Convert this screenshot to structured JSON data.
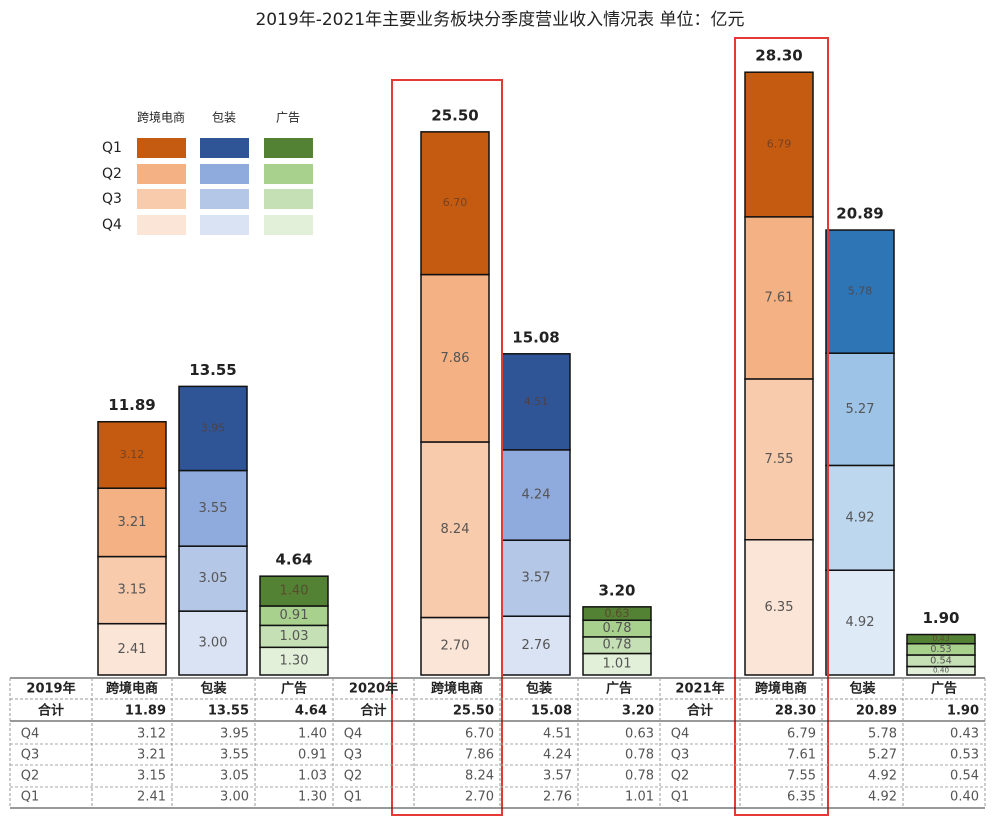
{
  "chart_data": {
    "type": "bar",
    "stacked": true,
    "title": "2019年-2021年主要业务板块分季度营业收入情况表  单位：亿元",
    "categories": [
      "跨境电商",
      "包装",
      "广告"
    ],
    "legend": {
      "labels": [
        "Q1",
        "Q2",
        "Q3",
        "Q4"
      ]
    },
    "total_label": "合计",
    "groups": [
      {
        "name": "2019年",
        "totals": [
          11.89,
          13.55,
          4.64
        ],
        "total_labels": [
          "11.89",
          "13.55",
          "4.64"
        ],
        "series": [
          {
            "name": "Q4",
            "values": [
              3.12,
              3.95,
              1.4
            ],
            "value_labels": [
              "3.12",
              "3.95",
              "1.40"
            ],
            "colors": [
              "#c55a11",
              "#2f5597",
              "#548235"
            ]
          },
          {
            "name": "Q3",
            "values": [
              3.21,
              3.55,
              0.91
            ],
            "value_labels": [
              "3.21",
              "3.55",
              "0.91"
            ],
            "colors": [
              "#f4b183",
              "#8faadc",
              "#a9d18e"
            ]
          },
          {
            "name": "Q2",
            "values": [
              3.15,
              3.05,
              1.03
            ],
            "value_labels": [
              "3.15",
              "3.05",
              "1.03"
            ],
            "colors": [
              "#f8cbad",
              "#b4c7e7",
              "#c5e0b4"
            ]
          },
          {
            "name": "Q1",
            "values": [
              2.41,
              3.0,
              1.3
            ],
            "value_labels": [
              "2.41",
              "3.00",
              "1.30"
            ],
            "colors": [
              "#fbe5d6",
              "#dae3f3",
              "#e2f0d9"
            ]
          }
        ]
      },
      {
        "name": "2020年",
        "totals": [
          25.5,
          15.08,
          3.2
        ],
        "total_labels": [
          "25.50",
          "15.08",
          "3.20"
        ],
        "series": [
          {
            "name": "Q4",
            "values": [
              6.7,
              4.51,
              0.63
            ],
            "value_labels": [
              "6.70",
              "4.51",
              "0.63"
            ],
            "colors": [
              "#c55a11",
              "#2f5597",
              "#548235"
            ]
          },
          {
            "name": "Q3",
            "values": [
              7.86,
              4.24,
              0.78
            ],
            "value_labels": [
              "7.86",
              "4.24",
              "0.78"
            ],
            "colors": [
              "#f4b183",
              "#8faadc",
              "#a9d18e"
            ]
          },
          {
            "name": "Q2",
            "values": [
              8.24,
              3.57,
              0.78
            ],
            "value_labels": [
              "8.24",
              "3.57",
              "0.78"
            ],
            "colors": [
              "#f8cbad",
              "#b4c7e7",
              "#c5e0b4"
            ]
          },
          {
            "name": "Q1",
            "values": [
              2.7,
              2.76,
              1.01
            ],
            "value_labels": [
              "2.70",
              "2.76",
              "1.01"
            ],
            "colors": [
              "#fbe5d6",
              "#dae3f3",
              "#e2f0d9"
            ]
          }
        ]
      },
      {
        "name": "2021年",
        "totals": [
          28.3,
          20.89,
          1.9
        ],
        "total_labels": [
          "28.30",
          "20.89",
          "1.90"
        ],
        "series": [
          {
            "name": "Q4",
            "values": [
              6.79,
              5.78,
              0.43
            ],
            "value_labels": [
              "6.79",
              "5.78",
              "0.43"
            ],
            "colors": [
              "#c55a11",
              "#2e75b6",
              "#548235"
            ]
          },
          {
            "name": "Q3",
            "values": [
              7.61,
              5.27,
              0.53
            ],
            "value_labels": [
              "7.61",
              "5.27",
              "0.53"
            ],
            "colors": [
              "#f4b183",
              "#9dc3e6",
              "#a9d18e"
            ]
          },
          {
            "name": "Q2",
            "values": [
              7.55,
              4.92,
              0.54
            ],
            "value_labels": [
              "7.55",
              "4.92",
              "0.54"
            ],
            "colors": [
              "#f8cbad",
              "#bdd7ee",
              "#c5e0b4"
            ]
          },
          {
            "name": "Q1",
            "values": [
              6.35,
              4.92,
              0.4
            ],
            "value_labels": [
              "6.35",
              "4.92",
              "0.40"
            ],
            "colors": [
              "#fbe5d6",
              "#deebf7",
              "#e2f0d9"
            ]
          }
        ]
      }
    ]
  }
}
